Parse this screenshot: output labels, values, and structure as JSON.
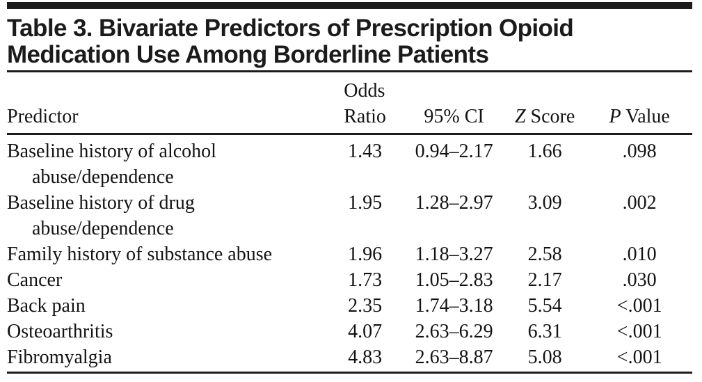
{
  "title": "Table 3. Bivariate Predictors of Prescription Opioid\nMedication Use Among Borderline Patients",
  "header": {
    "predictor": "Predictor",
    "odds_ratio": "Odds\nRatio",
    "ci": "95% CI",
    "z_italic": "Z",
    "z_rest": " Score",
    "p_italic": "P",
    "p_rest": " Value"
  },
  "rows": [
    {
      "predictor": "Baseline history of alcohol\nabuse/dependence",
      "or": "1.43",
      "ci": "0.94–2.17",
      "z": "1.66",
      "p": ".098"
    },
    {
      "predictor": "Baseline history of drug\nabuse/dependence",
      "or": "1.95",
      "ci": "1.28–2.97",
      "z": "3.09",
      "p": ".002"
    },
    {
      "predictor": "Family history of substance abuse",
      "or": "1.96",
      "ci": "1.18–3.27",
      "z": "2.58",
      "p": ".010"
    },
    {
      "predictor": "Cancer",
      "or": "1.73",
      "ci": "1.05–2.83",
      "z": "2.17",
      "p": ".030"
    },
    {
      "predictor": "Back pain",
      "or": "2.35",
      "ci": "1.74–3.18",
      "z": "5.54",
      "p": "<.001"
    },
    {
      "predictor": "Osteoarthritis",
      "or": "4.07",
      "ci": "2.63–6.29",
      "z": "6.31",
      "p": "<.001"
    },
    {
      "predictor": "Fibromyalgia",
      "or": "4.83",
      "ci": "2.63–8.87",
      "z": "5.08",
      "p": "<.001"
    }
  ],
  "colors": {
    "rule": "#1c1c1c",
    "text": "#161616",
    "background": "#ffffff"
  }
}
